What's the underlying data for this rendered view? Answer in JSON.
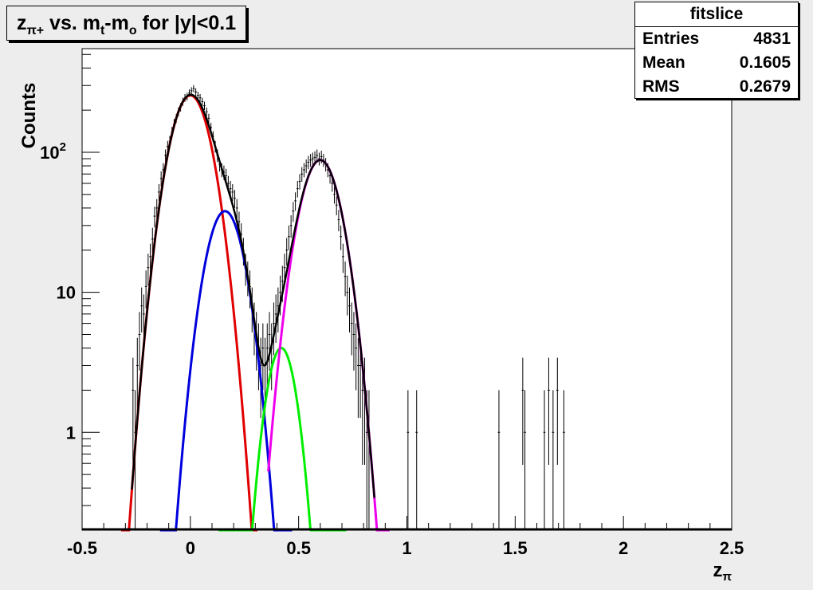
{
  "title": {
    "base": "z",
    "sub": "π+",
    "mid": " vs. m",
    "sub2": "t",
    "mid2": "-m",
    "sub3": "o",
    "tail": " for |y|<0.1"
  },
  "stats": {
    "name": "fitslice",
    "rows": [
      {
        "key": "Entries",
        "value": "4831"
      },
      {
        "key": "Mean",
        "value": "0.1605"
      },
      {
        "key": "RMS",
        "value": "0.2679"
      }
    ]
  },
  "colors": {
    "canvas": "#ededed",
    "frame": "#ffffff",
    "histogram": "#000000",
    "total_fit": "#000000",
    "pion_fit": "#e00000",
    "blue_fit": "#0000dd",
    "green_fit": "#00ee00",
    "magenta_fit": "#ee00ee"
  },
  "chart_data": {
    "type": "line",
    "xlabel": "z",
    "xlabel_sub": "π",
    "ylabel": "Counts",
    "xlim": [
      -0.5,
      2.5
    ],
    "ylim": [
      0.2,
      550
    ],
    "ylog": true,
    "grid": false,
    "x_ticks": [
      -0.5,
      0,
      0.5,
      1,
      1.5,
      2,
      2.5
    ],
    "x_tick_labels": [
      "-0.5",
      "0",
      "0.5",
      "1",
      "1.5",
      "2",
      "2.5"
    ],
    "y_ticks": [
      1,
      10,
      100
    ],
    "y_tick_labels": [
      "1",
      "10",
      "10^2"
    ],
    "histogram": {
      "bin_width": 0.01,
      "bins": [
        [
          -0.27,
          2
        ],
        [
          -0.26,
          1
        ],
        [
          -0.25,
          3
        ],
        [
          -0.24,
          5
        ],
        [
          -0.23,
          8
        ],
        [
          -0.22,
          7
        ],
        [
          -0.21,
          11
        ],
        [
          -0.2,
          15
        ],
        [
          -0.19,
          18
        ],
        [
          -0.18,
          24
        ],
        [
          -0.17,
          35
        ],
        [
          -0.16,
          40
        ],
        [
          -0.15,
          52
        ],
        [
          -0.14,
          65
        ],
        [
          -0.13,
          75
        ],
        [
          -0.12,
          95
        ],
        [
          -0.11,
          110
        ],
        [
          -0.1,
          120
        ],
        [
          -0.09,
          140
        ],
        [
          -0.08,
          160
        ],
        [
          -0.07,
          175
        ],
        [
          -0.06,
          195
        ],
        [
          -0.05,
          210
        ],
        [
          -0.04,
          230
        ],
        [
          -0.03,
          245
        ],
        [
          -0.02,
          250
        ],
        [
          -0.01,
          265
        ],
        [
          0.0,
          275
        ],
        [
          0.01,
          285
        ],
        [
          0.02,
          270
        ],
        [
          0.03,
          255
        ],
        [
          0.04,
          245
        ],
        [
          0.05,
          230
        ],
        [
          0.06,
          215
        ],
        [
          0.07,
          195
        ],
        [
          0.08,
          175
        ],
        [
          0.09,
          150
        ],
        [
          0.1,
          130
        ],
        [
          0.11,
          110
        ],
        [
          0.12,
          95
        ],
        [
          0.13,
          82
        ],
        [
          0.14,
          75
        ],
        [
          0.15,
          72
        ],
        [
          0.16,
          68
        ],
        [
          0.17,
          60
        ],
        [
          0.18,
          55
        ],
        [
          0.19,
          52
        ],
        [
          0.2,
          47
        ],
        [
          0.21,
          40
        ],
        [
          0.22,
          32
        ],
        [
          0.23,
          26
        ],
        [
          0.24,
          20
        ],
        [
          0.25,
          15
        ],
        [
          0.26,
          13
        ],
        [
          0.27,
          11
        ],
        [
          0.28,
          8
        ],
        [
          0.29,
          6
        ],
        [
          0.3,
          5
        ],
        [
          0.31,
          4
        ],
        [
          0.32,
          3
        ],
        [
          0.33,
          4
        ],
        [
          0.34,
          3
        ],
        [
          0.35,
          4
        ],
        [
          0.36,
          5
        ],
        [
          0.37,
          4
        ],
        [
          0.38,
          6
        ],
        [
          0.39,
          7
        ],
        [
          0.4,
          8
        ],
        [
          0.41,
          10
        ],
        [
          0.42,
          12
        ],
        [
          0.43,
          15
        ],
        [
          0.44,
          20
        ],
        [
          0.45,
          25
        ],
        [
          0.46,
          30
        ],
        [
          0.47,
          38
        ],
        [
          0.48,
          45
        ],
        [
          0.49,
          55
        ],
        [
          0.5,
          62
        ],
        [
          0.51,
          70
        ],
        [
          0.52,
          75
        ],
        [
          0.53,
          80
        ],
        [
          0.54,
          85
        ],
        [
          0.55,
          88
        ],
        [
          0.56,
          90
        ],
        [
          0.57,
          92
        ],
        [
          0.58,
          95
        ],
        [
          0.59,
          90
        ],
        [
          0.6,
          93
        ],
        [
          0.61,
          88
        ],
        [
          0.62,
          82
        ],
        [
          0.63,
          75
        ],
        [
          0.64,
          68
        ],
        [
          0.65,
          60
        ],
        [
          0.66,
          50
        ],
        [
          0.67,
          42
        ],
        [
          0.68,
          33
        ],
        [
          0.69,
          25
        ],
        [
          0.7,
          18
        ],
        [
          0.71,
          13
        ],
        [
          0.72,
          10
        ],
        [
          0.73,
          8
        ],
        [
          0.74,
          6
        ],
        [
          0.75,
          5
        ],
        [
          0.76,
          4
        ],
        [
          0.77,
          3
        ],
        [
          0.78,
          3
        ],
        [
          0.79,
          2
        ],
        [
          0.8,
          2
        ],
        [
          0.81,
          1
        ],
        [
          0.82,
          1
        ],
        [
          1.0,
          1
        ],
        [
          1.04,
          1
        ],
        [
          1.42,
          1
        ],
        [
          1.53,
          2
        ],
        [
          1.54,
          1
        ],
        [
          1.63,
          1
        ],
        [
          1.65,
          2
        ],
        [
          1.67,
          1
        ],
        [
          1.69,
          2
        ],
        [
          1.72,
          1
        ]
      ]
    },
    "series": [
      {
        "color": "#e00000",
        "gaussian": {
          "amplitude": 255,
          "mean": 0.0,
          "sigma": 0.075
        },
        "range": [
          -0.32,
          0.31
        ]
      },
      {
        "color": "#0000dd",
        "gaussian": {
          "amplitude": 38,
          "mean": 0.16,
          "sigma": 0.07
        },
        "range": [
          -0.14,
          0.47
        ]
      },
      {
        "color": "#00ee00",
        "gaussian": {
          "amplitude": 4,
          "mean": 0.42,
          "sigma": 0.055
        },
        "range": [
          0.13,
          0.72
        ]
      },
      {
        "color": "#ee00ee",
        "gaussian": {
          "amplitude": 88,
          "mean": 0.6,
          "sigma": 0.075
        },
        "range": [
          0.36,
          0.92
        ]
      },
      {
        "color": "#000000",
        "sum_of_others": true,
        "range": [
          -0.27,
          0.85
        ]
      }
    ]
  }
}
